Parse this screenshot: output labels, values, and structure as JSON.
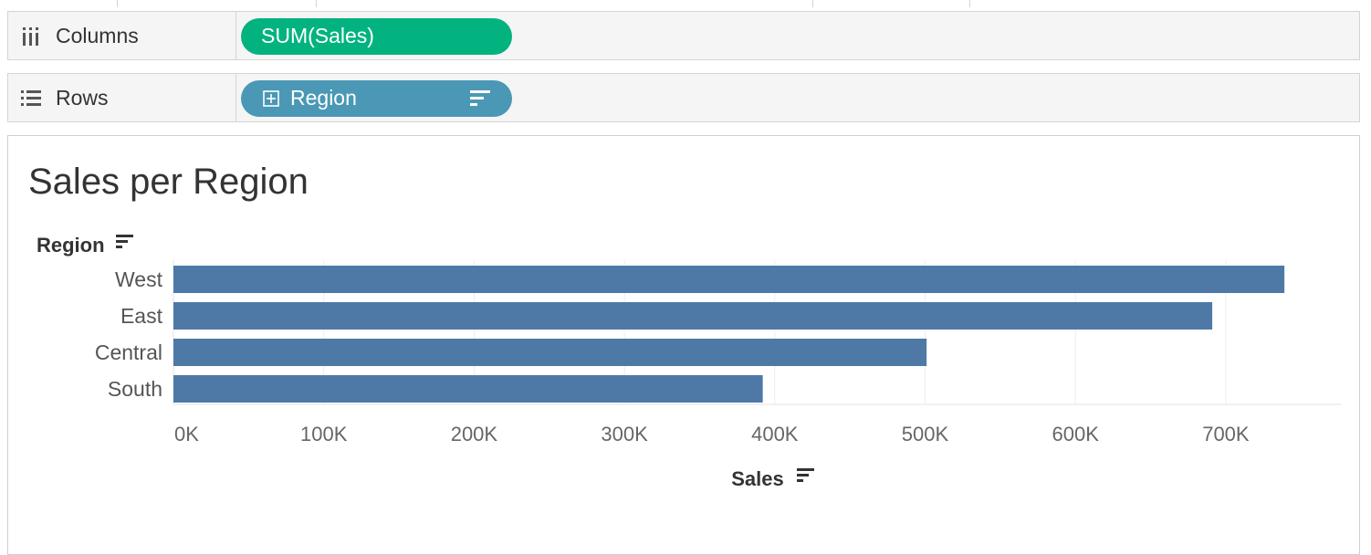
{
  "shelves": {
    "columns": {
      "label": "Columns",
      "pill": "SUM(Sales)",
      "pill_color": "#03b37f",
      "icon": "columns-icon"
    },
    "rows": {
      "label": "Rows",
      "pill": "Region",
      "pill_color": "#4a98b5",
      "icon": "rows-icon"
    }
  },
  "viz": {
    "title": "Sales per Region"
  },
  "chart_data": {
    "type": "bar",
    "orientation": "horizontal",
    "title": "Sales per Region",
    "categories": [
      "West",
      "East",
      "Central",
      "South"
    ],
    "values": [
      739000,
      691000,
      501000,
      392000
    ],
    "ylabel": "Region",
    "xlabel": "Sales",
    "xlim": [
      0,
      780000
    ],
    "ticks": [
      0,
      100000,
      200000,
      300000,
      400000,
      500000,
      600000,
      700000
    ],
    "tick_labels": [
      "0K",
      "100K",
      "200K",
      "300K",
      "400K",
      "500K",
      "600K",
      "700K"
    ],
    "bar_color": "#4e79a7",
    "grid": true
  }
}
